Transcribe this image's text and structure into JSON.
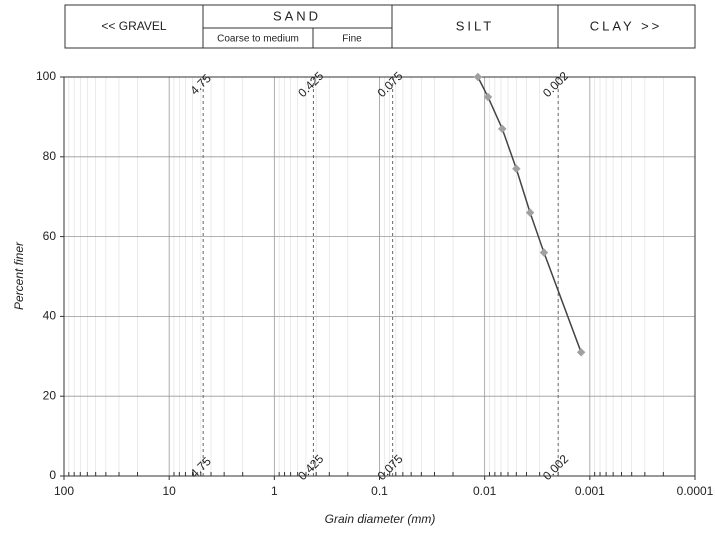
{
  "header": {
    "gravel": "<< GRAVEL",
    "sand": "SAND",
    "sand_coarse": "Coarse to medium",
    "sand_fine": "Fine",
    "silt": "SILT",
    "clay": "CLAY >>"
  },
  "chart_data": {
    "type": "line",
    "x_label": "Grain diameter (mm)",
    "y_label": "Percent finer",
    "xlog": true,
    "xlim": [
      100,
      0.0001
    ],
    "xticks": [
      100,
      10,
      1,
      0.1,
      0.01,
      0.001,
      0.0001
    ],
    "ylim": [
      0,
      100
    ],
    "yticks": [
      0,
      20,
      40,
      60,
      80,
      100
    ],
    "grid": true,
    "reference_lines": [
      4.75,
      0.425,
      0.075,
      0.002
    ],
    "series": [
      {
        "color": "#444444",
        "marker_color": "#a0a0a0",
        "x": [
          0.0116,
          0.0093,
          0.0068,
          0.005,
          0.0037,
          0.00273,
          0.00121
        ],
        "values": [
          100,
          95,
          87,
          77,
          66,
          56,
          31
        ]
      }
    ]
  }
}
